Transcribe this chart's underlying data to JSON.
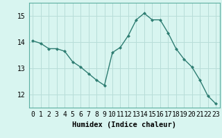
{
  "x": [
    0,
    1,
    2,
    3,
    4,
    5,
    6,
    7,
    8,
    9,
    10,
    11,
    12,
    13,
    14,
    15,
    16,
    17,
    18,
    19,
    20,
    21,
    22,
    23
  ],
  "y": [
    14.05,
    13.95,
    13.75,
    13.75,
    13.65,
    13.25,
    13.05,
    12.8,
    12.55,
    12.35,
    13.6,
    13.8,
    14.25,
    14.85,
    15.1,
    14.85,
    14.85,
    14.35,
    13.75,
    13.35,
    13.05,
    12.55,
    11.95,
    11.65
  ],
  "line_color": "#2e7d72",
  "marker": "D",
  "marker_size": 2.0,
  "bg_color": "#d8f5f0",
  "grid_color": "#b8ddd8",
  "xlabel": "Humidex (Indice chaleur)",
  "xlabel_fontsize": 7.5,
  "tick_fontsize": 7.0,
  "ylim": [
    11.5,
    15.5
  ],
  "yticks": [
    12,
    13,
    14,
    15
  ],
  "xlim": [
    -0.5,
    23.5
  ],
  "line_width": 1.0,
  "font_family": "monospace"
}
